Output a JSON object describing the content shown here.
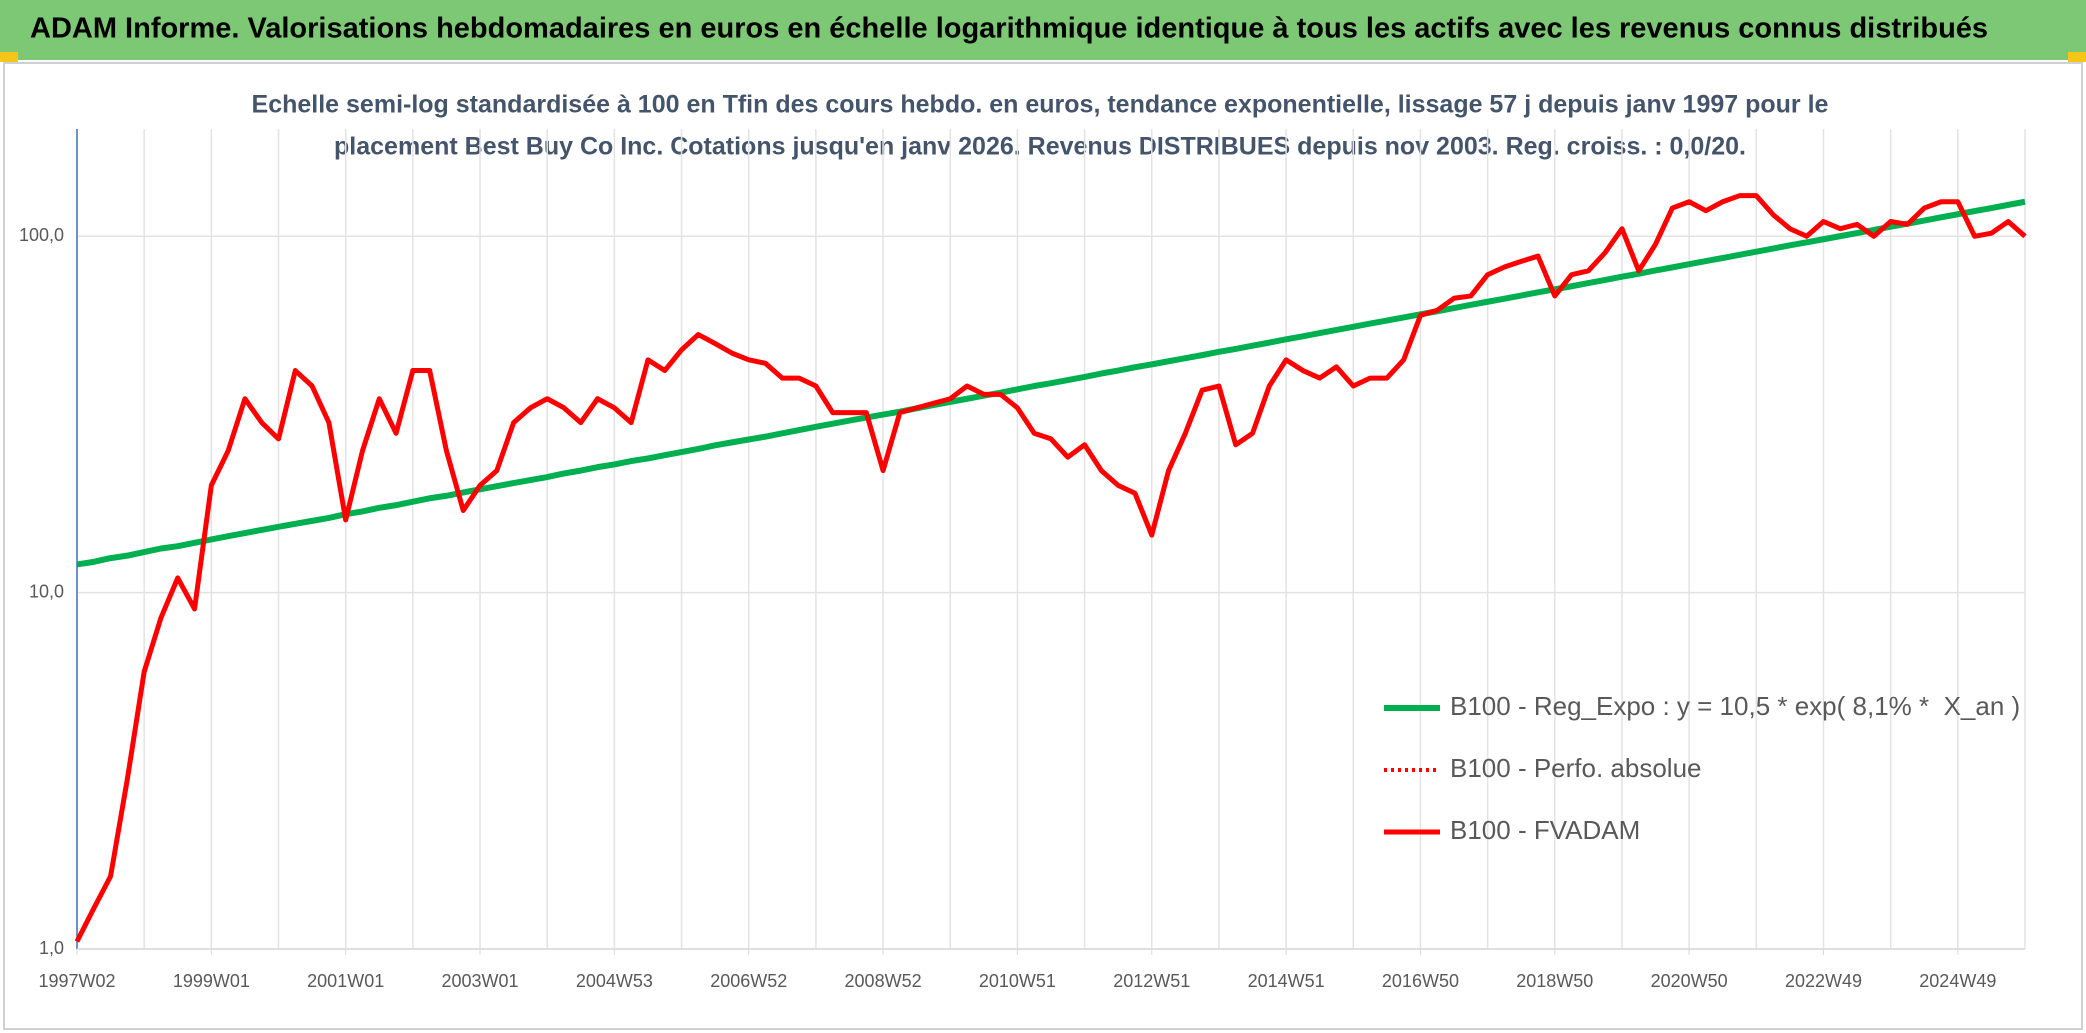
{
  "chart_data": {
    "type": "line",
    "title": "ADAM Informe. Valorisations hebdomadaires en euros en échelle logarithmique identique à tous les actifs avec les revenus connus distribués",
    "subtitle": [
      "Echelle semi-log standardisée à 100 en Tfin des cours hebdo. en euros, tendance exponentielle, lissage 57 j depuis janv 1997 pour le",
      "placement Best Buy Co Inc. Cotations jusqu'en janv 2026. Revenus DISTRIBUES depuis nov 2003. Reg. croiss. : 0,0/20."
    ],
    "log_scale": true,
    "grid": true,
    "legend": "right",
    "ylim": [
      1,
      200
    ],
    "yticks": [
      {
        "value": 1,
        "label": "1,0"
      },
      {
        "value": 10,
        "label": "10,0"
      },
      {
        "value": 100,
        "label": "100,0"
      }
    ],
    "categories": [
      "1997W02",
      null,
      null,
      null,
      null,
      null,
      null,
      null,
      "1999W01",
      null,
      null,
      null,
      null,
      null,
      null,
      null,
      "2001W01",
      null,
      null,
      null,
      null,
      null,
      null,
      null,
      "2003W01",
      null,
      null,
      null,
      null,
      null,
      null,
      null,
      "2004W53",
      null,
      null,
      null,
      null,
      null,
      null,
      null,
      "2006W52",
      null,
      null,
      null,
      null,
      null,
      null,
      null,
      "2008W52",
      null,
      null,
      null,
      null,
      null,
      null,
      null,
      "2010W51",
      null,
      null,
      null,
      null,
      null,
      null,
      null,
      "2012W51",
      null,
      null,
      null,
      null,
      null,
      null,
      null,
      "2014W51",
      null,
      null,
      null,
      null,
      null,
      null,
      null,
      "2016W50",
      null,
      null,
      null,
      null,
      null,
      null,
      null,
      "2018W50",
      null,
      null,
      null,
      null,
      null,
      null,
      null,
      "2020W50",
      null,
      null,
      null,
      null,
      null,
      null,
      null,
      "2022W49",
      null,
      null,
      null,
      null,
      null,
      null,
      null,
      "2024W49",
      null,
      null,
      null,
      null
    ],
    "series": [
      {
        "name": "B100 - Reg_Expo : y = 10,5 * exp( 8,1% *  X_an )",
        "color": "#00b050",
        "style": "solid",
        "width": 6,
        "values": [
          12.0,
          12.2,
          12.5,
          12.7,
          13.0,
          13.3,
          13.5,
          13.8,
          14.1,
          14.4,
          14.7,
          15.0,
          15.3,
          15.6,
          15.9,
          16.2,
          16.6,
          16.9,
          17.3,
          17.6,
          18.0,
          18.4,
          18.7,
          19.1,
          19.5,
          19.9,
          20.3,
          20.7,
          21.1,
          21.6,
          22.0,
          22.5,
          22.9,
          23.4,
          23.8,
          24.3,
          24.8,
          25.3,
          25.9,
          26.4,
          26.9,
          27.4,
          28.0,
          28.6,
          29.2,
          29.8,
          30.4,
          31.0,
          31.6,
          32.2,
          32.9,
          33.6,
          34.3,
          35.0,
          35.7,
          36.4,
          37.2,
          38.0,
          38.7,
          39.5,
          40.3,
          41.2,
          42.0,
          42.9,
          43.7,
          44.6,
          45.5,
          46.4,
          47.4,
          48.3,
          49.3,
          50.3,
          51.4,
          52.4,
          53.5,
          54.6,
          55.7,
          56.9,
          58.0,
          59.2,
          60.4,
          61.6,
          62.9,
          64.2,
          65.5,
          66.8,
          68.2,
          69.6,
          71.0,
          72.4,
          73.9,
          75.4,
          77.0,
          78.5,
          80.2,
          81.8,
          83.5,
          85.2,
          86.9,
          88.7,
          90.5,
          92.4,
          94.3,
          96.2,
          98.1,
          100.1,
          102.1,
          104.2,
          106.4,
          108.5,
          110.7,
          113.0,
          115.3,
          117.7,
          120.0,
          122.5,
          125.0
        ]
      },
      {
        "name": "B100 - Perfo. absolue",
        "color": "#ff0000",
        "style": "dotted",
        "width": 4,
        "values": [
          1.05,
          1.3,
          1.6,
          3,
          6,
          8.5,
          11,
          9,
          20,
          25,
          35,
          30,
          27,
          42,
          38,
          30,
          16,
          25,
          35,
          28,
          42,
          42,
          25,
          17,
          20,
          22,
          30,
          33,
          35,
          33,
          30,
          35,
          33,
          30,
          45,
          42,
          48,
          53,
          50,
          47,
          45,
          44,
          40,
          40,
          38,
          32,
          32,
          32,
          22,
          32,
          33,
          34,
          35,
          38,
          36,
          36,
          33,
          28,
          27,
          24,
          26,
          22,
          20,
          19,
          14.5,
          22,
          28,
          37,
          38,
          26,
          28,
          38,
          45,
          42,
          40,
          43,
          38,
          40,
          40,
          45,
          60,
          62,
          67,
          68,
          78,
          82,
          85,
          88,
          68,
          78,
          80,
          90,
          105,
          80,
          95,
          120,
          125,
          118,
          125,
          130,
          130,
          115,
          105,
          100,
          110,
          105,
          108,
          100,
          110,
          108,
          120,
          125,
          125,
          100,
          102,
          110,
          100
        ]
      },
      {
        "name": "B100 - FVADAM",
        "color": "#ff0000",
        "style": "solid",
        "width": 5,
        "values": [
          1.05,
          1.3,
          1.6,
          3,
          6,
          8.5,
          11,
          9,
          20,
          25,
          35,
          30,
          27,
          42,
          38,
          30,
          16,
          25,
          35,
          28,
          42,
          42,
          25,
          17,
          20,
          22,
          30,
          33,
          35,
          33,
          30,
          35,
          33,
          30,
          45,
          42,
          48,
          53,
          50,
          47,
          45,
          44,
          40,
          40,
          38,
          32,
          32,
          32,
          22,
          32,
          33,
          34,
          35,
          38,
          36,
          36,
          33,
          28,
          27,
          24,
          26,
          22,
          20,
          19,
          14.5,
          22,
          28,
          37,
          38,
          26,
          28,
          38,
          45,
          42,
          40,
          43,
          38,
          40,
          40,
          45,
          60,
          62,
          67,
          68,
          78,
          82,
          85,
          88,
          68,
          78,
          80,
          90,
          105,
          80,
          95,
          120,
          125,
          118,
          125,
          130,
          130,
          115,
          105,
          100,
          110,
          105,
          108,
          100,
          110,
          108,
          120,
          125,
          125,
          100,
          102,
          110,
          100
        ]
      }
    ]
  }
}
